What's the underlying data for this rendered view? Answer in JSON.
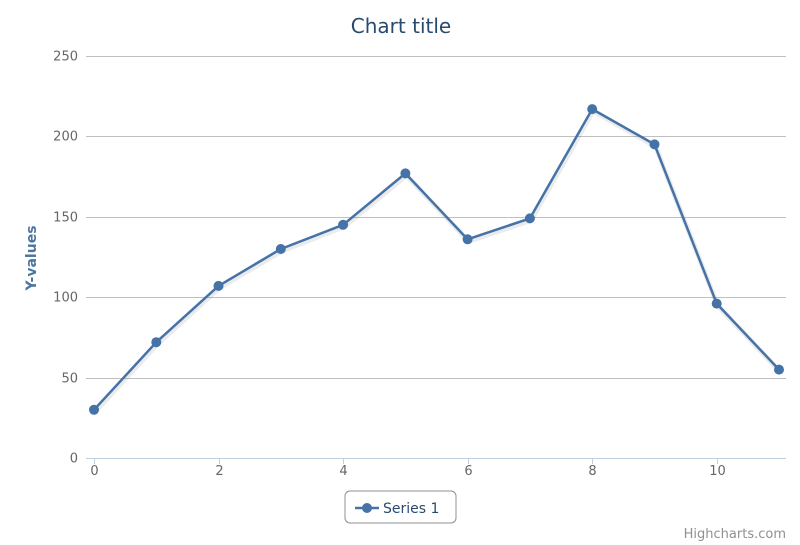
{
  "chart_data": {
    "type": "line",
    "title": "Chart title",
    "ylabel": "Y-values",
    "xlabel": "",
    "xlim": [
      0,
      11
    ],
    "ylim": [
      0,
      250
    ],
    "x_ticks": [
      "0",
      "2",
      "4",
      "6",
      "8",
      "10"
    ],
    "y_ticks": [
      "0",
      "50",
      "100",
      "150",
      "200",
      "250"
    ],
    "grid": true,
    "legend_position": "bottom-center",
    "series": [
      {
        "name": "Series 1",
        "color": "#4572a7",
        "x": [
          0,
          1,
          2,
          3,
          4,
          5,
          6,
          7,
          8,
          9,
          10,
          11
        ],
        "values": [
          30,
          72,
          107,
          130,
          145,
          177,
          136,
          149,
          217,
          195,
          96,
          55
        ]
      }
    ],
    "credit": "Highcharts.com"
  }
}
